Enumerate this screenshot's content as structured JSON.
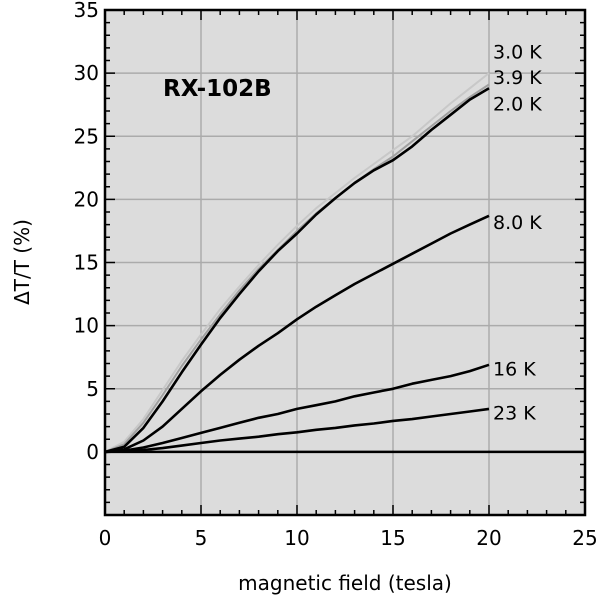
{
  "chart_data": {
    "type": "line",
    "title": "",
    "annotation": "RX-102B",
    "xlabel": "magnetic field (tesla)",
    "ylabel": "ΔT/T (%)",
    "xlim": [
      0,
      25
    ],
    "ylim": [
      -5,
      35
    ],
    "xticks": [
      0,
      5,
      10,
      15,
      20,
      25
    ],
    "yticks": [
      0,
      5,
      10,
      15,
      20,
      25,
      30,
      35
    ],
    "grid": true,
    "background_color": "#dcdcdc",
    "series": [
      {
        "name": "3.0 K",
        "color": "#c8c8c8",
        "x": [
          0,
          1,
          2,
          3,
          4,
          5,
          6,
          7,
          8,
          9,
          10,
          11,
          12,
          13,
          14,
          15,
          16,
          17,
          18,
          19,
          20
        ],
        "y": [
          0,
          0.8,
          2.6,
          4.9,
          7.2,
          9.3,
          11.3,
          13.1,
          14.8,
          16.4,
          17.9,
          19.3,
          20.5,
          21.7,
          22.8,
          23.9,
          25.0,
          26.3,
          27.6,
          28.8,
          30.0
        ]
      },
      {
        "name": "3.9 K",
        "color": "#a0a0a0",
        "x": [
          0,
          1,
          2,
          3,
          4,
          5,
          6,
          7,
          8,
          9,
          10,
          11,
          12,
          13,
          14,
          15,
          16,
          17,
          18,
          19,
          20
        ],
        "y": [
          0,
          0.6,
          2.3,
          4.5,
          6.8,
          8.9,
          10.9,
          12.8,
          14.5,
          16.0,
          17.5,
          18.9,
          20.1,
          21.3,
          22.4,
          23.4,
          24.6,
          25.8,
          27.0,
          28.1,
          29.1
        ]
      },
      {
        "name": "2.0 K",
        "color": "#000000",
        "x": [
          0,
          1,
          2,
          3,
          4,
          5,
          6,
          7,
          8,
          9,
          10,
          11,
          12,
          13,
          14,
          15,
          16,
          17,
          18,
          19,
          20
        ],
        "y": [
          0,
          0.4,
          1.9,
          4.0,
          6.3,
          8.5,
          10.6,
          12.5,
          14.3,
          15.9,
          17.3,
          18.8,
          20.1,
          21.3,
          22.3,
          23.1,
          24.2,
          25.5,
          26.7,
          27.9,
          28.8
        ]
      },
      {
        "name": "8.0 K",
        "color": "#000000",
        "x": [
          0,
          1,
          2,
          3,
          4,
          5,
          6,
          7,
          8,
          9,
          10,
          11,
          12,
          13,
          14,
          15,
          16,
          17,
          18,
          19,
          20
        ],
        "y": [
          0,
          0.2,
          0.9,
          2.0,
          3.4,
          4.8,
          6.1,
          7.3,
          8.4,
          9.4,
          10.5,
          11.5,
          12.4,
          13.3,
          14.1,
          14.9,
          15.7,
          16.5,
          17.3,
          18.0,
          18.7
        ]
      },
      {
        "name": "16 K",
        "color": "#000000",
        "x": [
          0,
          1,
          2,
          3,
          4,
          5,
          6,
          7,
          8,
          9,
          10,
          11,
          12,
          13,
          14,
          15,
          16,
          17,
          18,
          19,
          20
        ],
        "y": [
          0,
          0.1,
          0.35,
          0.7,
          1.1,
          1.5,
          1.9,
          2.3,
          2.7,
          3.0,
          3.4,
          3.7,
          4.0,
          4.4,
          4.7,
          5.0,
          5.4,
          5.7,
          6.0,
          6.4,
          6.9
        ]
      },
      {
        "name": "23 K",
        "color": "#000000",
        "x": [
          0,
          1,
          2,
          3,
          4,
          5,
          6,
          7,
          8,
          9,
          10,
          11,
          12,
          13,
          14,
          15,
          16,
          17,
          18,
          19,
          20
        ],
        "y": [
          0,
          0.05,
          0.15,
          0.3,
          0.5,
          0.7,
          0.9,
          1.05,
          1.2,
          1.4,
          1.55,
          1.75,
          1.9,
          2.1,
          2.25,
          2.45,
          2.6,
          2.8,
          3.0,
          3.2,
          3.4
        ]
      }
    ],
    "series_labels": [
      {
        "text": "3.0 K",
        "y": 31.7
      },
      {
        "text": "3.9 K",
        "y": 29.7
      },
      {
        "text": "2.0 K",
        "y": 27.6
      },
      {
        "text": "8.0 K",
        "y": 18.2
      },
      {
        "text": "16 K",
        "y": 6.6
      },
      {
        "text": "23 K",
        "y": 3.1
      }
    ]
  }
}
